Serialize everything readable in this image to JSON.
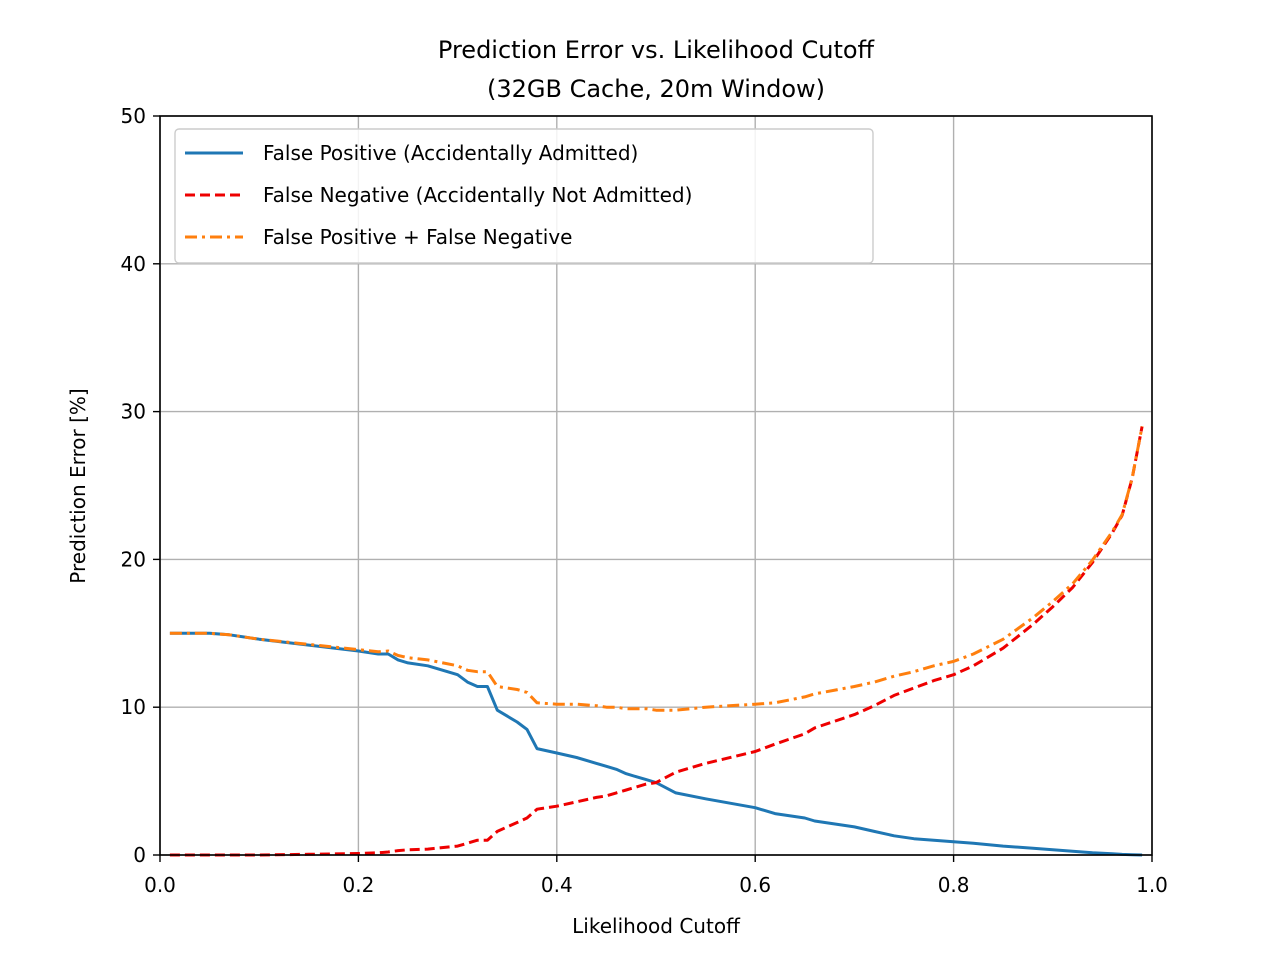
{
  "chart_data": {
    "type": "line",
    "title": "Prediction Error vs. Likelihood Cutoff",
    "subtitle": "(32GB Cache, 20m Window)",
    "xlabel": "Likelihood Cutoff",
    "ylabel": "Prediction Error [%]",
    "xlim": [
      0.0,
      1.0
    ],
    "ylim": [
      0,
      50
    ],
    "xticks": [
      "0.0",
      "0.2",
      "0.4",
      "0.6",
      "0.8",
      "1.0"
    ],
    "yticks": [
      "0",
      "10",
      "20",
      "30",
      "40",
      "50"
    ],
    "grid": true,
    "legend_position": "top-left",
    "x": [
      0.01,
      0.03,
      0.05,
      0.07,
      0.1,
      0.15,
      0.2,
      0.22,
      0.23,
      0.24,
      0.25,
      0.27,
      0.3,
      0.31,
      0.32,
      0.33,
      0.34,
      0.35,
      0.36,
      0.37,
      0.38,
      0.4,
      0.42,
      0.44,
      0.45,
      0.46,
      0.47,
      0.48,
      0.49,
      0.5,
      0.52,
      0.55,
      0.6,
      0.62,
      0.65,
      0.66,
      0.7,
      0.72,
      0.74,
      0.76,
      0.78,
      0.8,
      0.82,
      0.85,
      0.88,
      0.9,
      0.92,
      0.94,
      0.96,
      0.97,
      0.98,
      0.99
    ],
    "series": [
      {
        "name": "False Positive (Accidentally Admitted)",
        "color": "#1f77b4",
        "style": "solid",
        "values": [
          15.0,
          15.0,
          15.0,
          14.9,
          14.6,
          14.2,
          13.8,
          13.6,
          13.6,
          13.2,
          13.0,
          12.8,
          12.2,
          11.7,
          11.4,
          11.4,
          9.8,
          9.4,
          9.0,
          8.5,
          7.2,
          6.9,
          6.6,
          6.2,
          6.0,
          5.8,
          5.5,
          5.3,
          5.1,
          4.9,
          4.2,
          3.8,
          3.2,
          2.8,
          2.5,
          2.3,
          1.9,
          1.6,
          1.3,
          1.1,
          1.0,
          0.9,
          0.8,
          0.6,
          0.45,
          0.35,
          0.25,
          0.15,
          0.08,
          0.04,
          0.02,
          0.0
        ]
      },
      {
        "name": "False Negative (Accidentally Not Admitted)",
        "color": "#ee0000",
        "style": "dashed",
        "values": [
          0.0,
          0.0,
          0.0,
          0.0,
          0.0,
          0.05,
          0.1,
          0.15,
          0.2,
          0.3,
          0.35,
          0.4,
          0.6,
          0.8,
          1.0,
          1.0,
          1.6,
          1.9,
          2.2,
          2.5,
          3.1,
          3.3,
          3.6,
          3.9,
          4.0,
          4.2,
          4.4,
          4.6,
          4.8,
          4.9,
          5.6,
          6.2,
          7.0,
          7.5,
          8.2,
          8.6,
          9.5,
          10.1,
          10.8,
          11.3,
          11.8,
          12.2,
          12.8,
          14.0,
          15.6,
          16.8,
          18.1,
          19.8,
          21.8,
          23.0,
          25.5,
          29.0
        ]
      },
      {
        "name": "False Positive + False Negative",
        "color": "#ff7f0e",
        "style": "dashdot",
        "values": [
          15.0,
          15.0,
          15.0,
          14.9,
          14.6,
          14.25,
          13.9,
          13.75,
          13.8,
          13.5,
          13.35,
          13.2,
          12.8,
          12.5,
          12.4,
          12.4,
          11.4,
          11.3,
          11.2,
          11.0,
          10.3,
          10.2,
          10.2,
          10.1,
          10.0,
          10.0,
          9.9,
          9.9,
          9.9,
          9.8,
          9.8,
          10.0,
          10.2,
          10.3,
          10.7,
          10.9,
          11.4,
          11.7,
          12.1,
          12.4,
          12.8,
          13.1,
          13.6,
          14.6,
          16.05,
          17.15,
          18.35,
          19.95,
          21.88,
          23.04,
          25.52,
          29.0
        ]
      }
    ]
  }
}
